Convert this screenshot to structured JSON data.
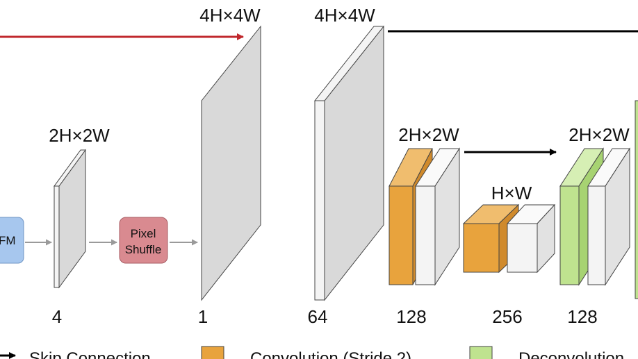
{
  "dimensions": {
    "hw2_a": "2H×2W",
    "hw4_a": "4H×4W",
    "hw4_b": "4H×4W",
    "hw2_b": "2H×2W",
    "hw1": "H×W",
    "hw2_c": "2H×2W"
  },
  "channels": {
    "c4": "4",
    "c1": "1",
    "c64": "64",
    "c128_a": "128",
    "c256": "256",
    "c128_b": "128"
  },
  "boxes": {
    "fm": "FM",
    "pixel_shuffle_line1": "Pixel",
    "pixel_shuffle_line2": "Shuffle"
  },
  "legend": {
    "skip": "Skip Connection",
    "conv": "Convolution (Stride 2)",
    "deconv": "Deconvolution"
  },
  "colors": {
    "orange": "#e8a33d",
    "green": "#bfe38f",
    "gray": "#d9d9d9",
    "white": "#f4f4f4",
    "blue": "#a7c7ee",
    "pink": "#d98a90",
    "red": "#c0282d"
  }
}
